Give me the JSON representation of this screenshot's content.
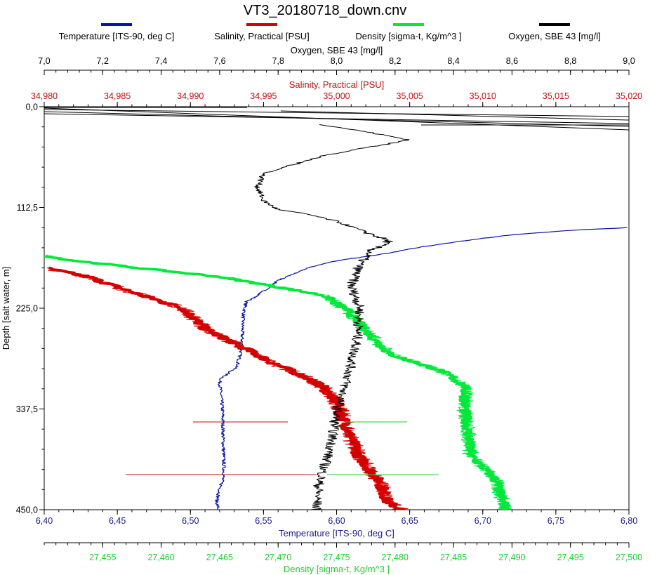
{
  "title": "VT3_20180718_down.cnv",
  "legend": [
    {
      "label": "Temperature [ITS-90, deg C]",
      "color": "#0a14a0"
    },
    {
      "label": "Salinity, Practical [PSU]",
      "color": "#d40000"
    },
    {
      "label": "Density [sigma-t, Kg/m^3 ]",
      "color": "#00e83a"
    },
    {
      "label": "Oxygen, SBE 43 [mg/l]",
      "color": "#000000"
    }
  ],
  "chart_data": {
    "type": "line",
    "title": "VT3_20180718_down.cnv",
    "y_axis": {
      "label": "Depth [salt water, m]",
      "range": [
        0,
        450
      ],
      "inverted": true,
      "ticks": [
        "0,0",
        "112,5",
        "225,0",
        "337,5",
        "450,0"
      ]
    },
    "x_axes": {
      "oxygen": {
        "label": "Oxygen, SBE 43 [mg/l]",
        "range": [
          7.0,
          9.0
        ],
        "color": "#000000",
        "ticks": [
          "7,0",
          "7,2",
          "7,4",
          "7,6",
          "7,8",
          "8,0",
          "8,2",
          "8,4",
          "8,6",
          "8,8",
          "9,0"
        ]
      },
      "salinity": {
        "label": "Salinity, Practical [PSU]",
        "range": [
          34.98,
          35.02
        ],
        "color": "#c01010",
        "ticks": [
          "34,980",
          "34,985",
          "34,990",
          "34,995",
          "35,000",
          "35,005",
          "35,010",
          "35,015",
          "35,020"
        ]
      },
      "temperature": {
        "label": "Temperature [ITS-90, deg C]",
        "range": [
          6.4,
          6.8
        ],
        "color": "#1a1a8c",
        "ticks": [
          "6,40",
          "6,45",
          "6,50",
          "6,55",
          "6,60",
          "6,65",
          "6,70",
          "6,75",
          "6,80"
        ]
      },
      "density": {
        "label": "Density [sigma-t, Kg/m^3 ]",
        "range": [
          27.45,
          27.5
        ],
        "color": "#22cc33",
        "ticks": [
          "27,455",
          "27,460",
          "27,465",
          "27,470",
          "27,475",
          "27,480",
          "27,485",
          "27,490",
          "27,495",
          "27,500"
        ]
      }
    },
    "series": [
      {
        "name": "Temperature [ITS-90, deg C]",
        "axis": "temperature",
        "color": "#0a14a0",
        "points": [
          [
            6.8,
            135
          ],
          [
            6.76,
            138
          ],
          [
            6.72,
            143
          ],
          [
            6.69,
            149
          ],
          [
            6.66,
            156
          ],
          [
            6.63,
            165
          ],
          [
            6.6,
            172
          ],
          [
            6.58,
            180
          ],
          [
            6.56,
            194
          ],
          [
            6.55,
            206
          ],
          [
            6.545,
            212
          ],
          [
            6.538,
            218
          ],
          [
            6.536,
            235
          ],
          [
            6.535,
            270
          ],
          [
            6.532,
            290
          ],
          [
            6.52,
            305
          ],
          [
            6.522,
            340
          ],
          [
            6.523,
            410
          ],
          [
            6.518,
            440
          ],
          [
            6.519,
            450
          ]
        ]
      },
      {
        "name": "Salinity, Practical [PSU]",
        "axis": "salinity",
        "color": "#d40000",
        "points": [
          [
            34.98,
            180
          ],
          [
            34.983,
            190
          ],
          [
            34.986,
            207
          ],
          [
            34.9895,
            225
          ],
          [
            34.991,
            248
          ],
          [
            34.9935,
            268
          ],
          [
            34.9955,
            285
          ],
          [
            34.998,
            303
          ],
          [
            34.999,
            312
          ],
          [
            35.0,
            330
          ],
          [
            35.0005,
            350
          ],
          [
            35.0015,
            390
          ],
          [
            35.003,
            420
          ],
          [
            35.0035,
            442
          ],
          [
            35.0045,
            450
          ]
        ]
      },
      {
        "name": "Density [sigma-t, Kg/m^3 ]",
        "axis": "density",
        "color": "#00e83a",
        "points": [
          [
            27.45,
            166
          ],
          [
            27.452,
            171
          ],
          [
            27.458,
            180
          ],
          [
            27.465,
            190
          ],
          [
            27.469,
            199
          ],
          [
            27.474,
            211
          ],
          [
            27.476,
            228
          ],
          [
            27.4775,
            250
          ],
          [
            27.4795,
            276
          ],
          [
            27.484,
            295
          ],
          [
            27.486,
            312
          ],
          [
            27.486,
            340
          ],
          [
            27.4865,
            390
          ],
          [
            27.4885,
            415
          ],
          [
            27.4895,
            450
          ]
        ]
      },
      {
        "name": "Oxygen, SBE 43 [mg/l]",
        "axis": "oxygen",
        "color": "#000000",
        "points": [
          [
            7.95,
            20
          ],
          [
            8.1,
            28
          ],
          [
            8.25,
            37
          ],
          [
            8.1,
            46
          ],
          [
            7.95,
            55
          ],
          [
            7.85,
            65
          ],
          [
            7.75,
            75
          ],
          [
            7.73,
            90
          ],
          [
            7.75,
            105
          ],
          [
            7.8,
            115
          ],
          [
            7.9,
            120
          ],
          [
            8.0,
            128
          ],
          [
            8.1,
            140
          ],
          [
            8.18,
            150
          ],
          [
            8.12,
            160
          ],
          [
            8.08,
            175
          ],
          [
            8.05,
            200
          ],
          [
            8.08,
            225
          ],
          [
            8.07,
            260
          ],
          [
            8.04,
            300
          ],
          [
            8.0,
            340
          ],
          [
            7.98,
            380
          ],
          [
            7.94,
            420
          ],
          [
            7.93,
            450
          ]
        ]
      }
    ],
    "grid": false,
    "legend_position": "top"
  }
}
